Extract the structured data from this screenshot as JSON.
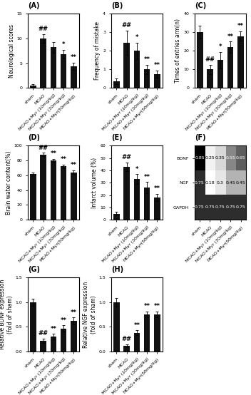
{
  "chart_data": [
    {
      "type": "bar",
      "title": "(A)",
      "categories": [
        "sham",
        "MCAO",
        "MCAO+Myr (10mg/kg)",
        "MCAO+Myr (30mg/kg)",
        "MCAO+Myr(50mg/kg)"
      ],
      "values": [
        0.5,
        10.0,
        8.2,
        6.8,
        4.4
      ],
      "errors": [
        0.3,
        0.9,
        1.1,
        0.9,
        0.7
      ],
      "annotations": [
        null,
        "##",
        null,
        "*",
        "**"
      ],
      "ylabel": "Neurological scores",
      "ylim": [
        0,
        15
      ],
      "yticks": [
        0,
        5,
        10,
        15
      ],
      "color": "#111111"
    },
    {
      "type": "bar",
      "title": "(B)",
      "categories": [
        "sham",
        "MCAO",
        "MCAO+Myr (10mg/kg)",
        "MCAO+Myr (30mg/kg)",
        "MCAO+Myr(50mg/kg)"
      ],
      "values": [
        0.35,
        2.45,
        2.0,
        1.0,
        0.75
      ],
      "errors": [
        0.15,
        0.65,
        0.45,
        0.25,
        0.2
      ],
      "annotations": [
        null,
        "##",
        "*",
        "**",
        "**"
      ],
      "ylabel": "Frequency of mistake",
      "ylim": [
        0,
        4
      ],
      "yticks": [
        0,
        1,
        2,
        3,
        4
      ],
      "color": "#111111"
    },
    {
      "type": "bar",
      "title": "(C)",
      "categories": [
        "sham",
        "MCAO",
        "MCAO+Myr (10mg/kg)",
        "MCAO+Myr (30mg/kg)",
        "MCAO+Myr(50mg/kg)"
      ],
      "values": [
        30.0,
        10.0,
        15.0,
        22.0,
        28.0
      ],
      "errors": [
        3.5,
        2.5,
        4.5,
        3.0,
        2.5
      ],
      "annotations": [
        null,
        "##",
        "*",
        "**",
        "**"
      ],
      "ylabel": "Times of entries arm(n)",
      "ylim": [
        0,
        40
      ],
      "yticks": [
        0,
        10,
        20,
        30,
        40
      ],
      "color": "#111111"
    },
    {
      "type": "bar",
      "title": "(D)",
      "categories": [
        "sham",
        "MCAO",
        "MCAO+Myr (10mg/kg)",
        "MCAO+Myr (30mg/kg)",
        "MCAO+Myr(50mg/kg)"
      ],
      "values": [
        62.0,
        88.0,
        80.0,
        72.0,
        64.0
      ],
      "errors": [
        2.0,
        2.5,
        2.0,
        2.5,
        2.5
      ],
      "annotations": [
        null,
        "##",
        "**",
        "**",
        "**"
      ],
      "ylabel": "Brain water content(%)",
      "ylim": [
        0,
        100
      ],
      "yticks": [
        0,
        20,
        40,
        60,
        80,
        100
      ],
      "color": "#111111"
    },
    {
      "type": "bar",
      "title": "(E)",
      "categories": [
        "sham",
        "MCAO",
        "MCAO+Myr (10mg/kg)",
        "MCAO+Myr (30mg/kg)",
        "MCAO+Myr(50mg/kg)"
      ],
      "values": [
        5.0,
        43.0,
        33.0,
        26.0,
        18.0
      ],
      "errors": [
        1.5,
        3.5,
        4.0,
        4.5,
        3.0
      ],
      "annotations": [
        null,
        "##",
        "*",
        "**",
        "**"
      ],
      "ylabel": "Infarct volume (%)",
      "ylim": [
        0,
        60
      ],
      "yticks": [
        0,
        10,
        20,
        30,
        40,
        50,
        60
      ],
      "color": "#111111"
    },
    {
      "type": "heatmap",
      "title": "(F)",
      "categories": [
        "sham",
        "MCAO",
        "MCAO+Myr (10mg/kg)",
        "MCAO+Myr (30mg/kg)",
        "MCAO+Myr(50mg/kg)"
      ],
      "y_categories": [
        "BDNF",
        "NGF",
        "GAPDH"
      ],
      "values": [
        [
          0.85,
          0.25,
          0.35,
          0.55,
          0.65
        ],
        [
          0.75,
          0.18,
          0.3,
          0.45,
          0.45
        ],
        [
          0.75,
          0.75,
          0.75,
          0.75,
          0.75
        ]
      ],
      "data_labels": true
    },
    {
      "type": "bar",
      "title": "(G)",
      "categories": [
        "sham",
        "MCAO",
        "MCAO+Myr (10mg/kg)",
        "MCAO+Myr (30mg/kg)",
        "MCAO+Myr(50mg/kg)"
      ],
      "values": [
        1.0,
        0.22,
        0.3,
        0.47,
        0.62
      ],
      "errors": [
        0.07,
        0.04,
        0.06,
        0.06,
        0.07
      ],
      "annotations": [
        null,
        "##",
        "**",
        "**",
        "**"
      ],
      "ylabel": "Relative BDNF expression\n(fold of sham)",
      "ylim": [
        0,
        1.5
      ],
      "yticks": [
        {
          "value": 0,
          "label": "0.0"
        },
        0.5,
        {
          "value": 1,
          "label": "1.0"
        },
        1.5
      ],
      "color": "#111111"
    },
    {
      "type": "bar",
      "title": "(H)",
      "categories": [
        "sham",
        "MCAO",
        "MCAO+Myr (10mg/kg)",
        "MCAO+Myr (30mg/kg)",
        "MCAO+Myr(50mg/kg)"
      ],
      "values": [
        1.0,
        0.12,
        0.38,
        0.75,
        0.75
      ],
      "errors": [
        0.09,
        0.03,
        0.05,
        0.06,
        0.06
      ],
      "annotations": [
        null,
        "##",
        "**",
        "**",
        "**"
      ],
      "ylabel": "Relative NGF expression\n(fold of sham)",
      "ylim": [
        0,
        1.5
      ],
      "yticks": [
        {
          "value": 0,
          "label": "0.0"
        },
        0.5,
        {
          "value": 1,
          "label": "1.0"
        },
        1.5
      ],
      "color": "#111111"
    }
  ]
}
